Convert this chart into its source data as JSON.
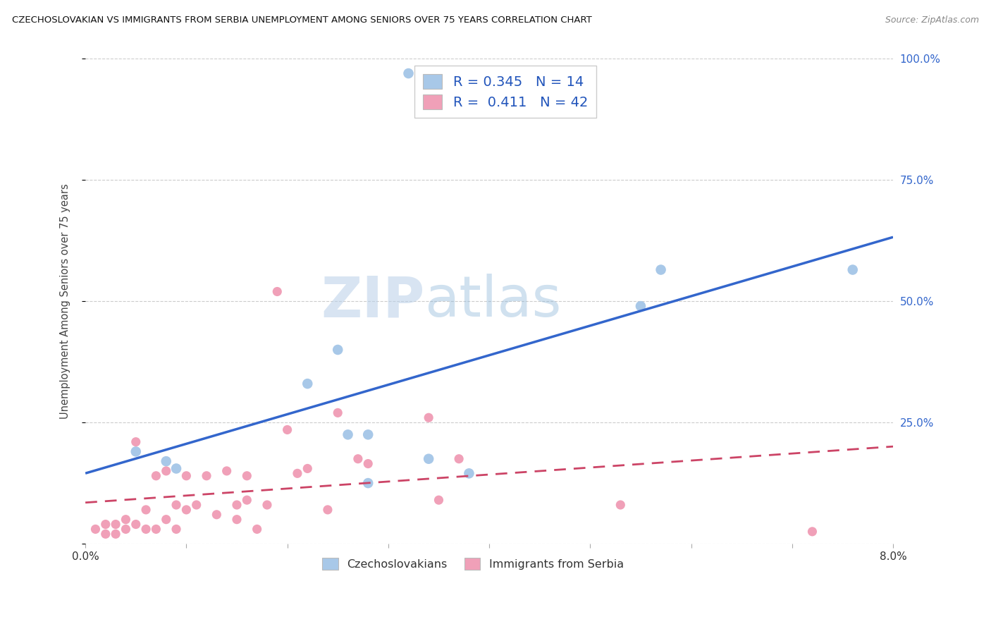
{
  "title": "CZECHOSLOVAKIAN VS IMMIGRANTS FROM SERBIA UNEMPLOYMENT AMONG SENIORS OVER 75 YEARS CORRELATION CHART",
  "source": "Source: ZipAtlas.com",
  "ylabel": "Unemployment Among Seniors over 75 years",
  "legend_blue_R": "0.345",
  "legend_blue_N": "14",
  "legend_pink_R": "0.411",
  "legend_pink_N": "42",
  "legend_label_blue": "Czechoslovakians",
  "legend_label_pink": "Immigrants from Serbia",
  "blue_color": "#a8c8e8",
  "pink_color": "#f0a0b8",
  "trendline_blue": "#3366cc",
  "trendline_pink": "#cc4466",
  "watermark_zip": "ZIP",
  "watermark_atlas": "atlas",
  "blue_scatter_x": [
    0.032,
    0.005,
    0.009,
    0.022,
    0.025,
    0.026,
    0.028,
    0.034,
    0.008,
    0.028,
    0.038,
    0.055,
    0.057,
    0.076
  ],
  "blue_scatter_y": [
    0.97,
    0.19,
    0.155,
    0.33,
    0.4,
    0.225,
    0.225,
    0.175,
    0.17,
    0.125,
    0.145,
    0.49,
    0.565,
    0.565
  ],
  "pink_scatter_x": [
    0.001,
    0.002,
    0.002,
    0.003,
    0.003,
    0.004,
    0.004,
    0.005,
    0.005,
    0.006,
    0.006,
    0.007,
    0.007,
    0.008,
    0.008,
    0.009,
    0.009,
    0.01,
    0.01,
    0.011,
    0.012,
    0.013,
    0.014,
    0.015,
    0.015,
    0.016,
    0.016,
    0.017,
    0.018,
    0.019,
    0.02,
    0.021,
    0.022,
    0.024,
    0.025,
    0.027,
    0.028,
    0.034,
    0.035,
    0.037,
    0.053,
    0.072
  ],
  "pink_scatter_y": [
    0.03,
    0.04,
    0.02,
    0.04,
    0.02,
    0.03,
    0.05,
    0.04,
    0.21,
    0.03,
    0.07,
    0.03,
    0.14,
    0.05,
    0.15,
    0.03,
    0.08,
    0.07,
    0.14,
    0.08,
    0.14,
    0.06,
    0.15,
    0.05,
    0.08,
    0.09,
    0.14,
    0.03,
    0.08,
    0.52,
    0.235,
    0.145,
    0.155,
    0.07,
    0.27,
    0.175,
    0.165,
    0.26,
    0.09,
    0.175,
    0.08,
    0.025
  ],
  "xlim": [
    0.0,
    0.08
  ],
  "ylim": [
    0.0,
    1.0
  ],
  "ytick_positions": [
    0.0,
    0.25,
    0.5,
    0.75,
    1.0
  ],
  "ytick_labels": [
    "",
    "25.0%",
    "50.0%",
    "75.0%",
    "100.0%"
  ],
  "xtick_positions": [
    0.0,
    0.01,
    0.02,
    0.03,
    0.04,
    0.05,
    0.06,
    0.07,
    0.08
  ],
  "xtick_labels": [
    "0.0%",
    "",
    "",
    "",
    "",
    "",
    "",
    "",
    "8.0%"
  ]
}
